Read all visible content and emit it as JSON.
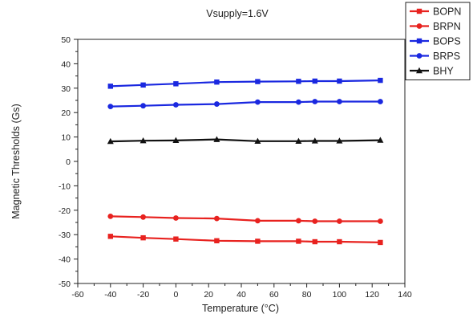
{
  "chart_data": {
    "type": "line",
    "title": "Vsupply=1.6V",
    "xlabel": "Temperature (°C)",
    "ylabel": "Magnetic Thresholds (Gs)",
    "xlim": [
      -60,
      140
    ],
    "ylim": [
      -50,
      50
    ],
    "xticks": [
      -60,
      -40,
      -20,
      0,
      20,
      40,
      60,
      80,
      100,
      120,
      140
    ],
    "yticks": [
      50,
      40,
      30,
      20,
      10,
      0,
      -10,
      -20,
      -30,
      -40,
      -50
    ],
    "grid": false,
    "legend_position": "top-right-outside",
    "x": [
      -40,
      -20,
      0,
      25,
      50,
      75,
      85,
      100,
      125
    ],
    "series": [
      {
        "name": "BOPN",
        "color": "#e8221f",
        "marker": "square",
        "values": [
          -30.7,
          -31.3,
          -31.8,
          -32.5,
          -32.7,
          -32.7,
          -32.9,
          -32.9,
          -33.2
        ]
      },
      {
        "name": "BRPN",
        "color": "#e8221f",
        "marker": "circle",
        "values": [
          -22.5,
          -22.8,
          -23.2,
          -23.4,
          -24.3,
          -24.3,
          -24.5,
          -24.5,
          -24.5
        ]
      },
      {
        "name": "BOPS",
        "color": "#1a28e0",
        "marker": "square",
        "values": [
          30.8,
          31.3,
          31.8,
          32.5,
          32.7,
          32.8,
          32.9,
          32.9,
          33.2
        ]
      },
      {
        "name": "BRPS",
        "color": "#1a28e0",
        "marker": "circle",
        "values": [
          22.5,
          22.8,
          23.2,
          23.5,
          24.3,
          24.3,
          24.5,
          24.5,
          24.5
        ]
      },
      {
        "name": "BHY",
        "color": "#111111",
        "marker": "triangle",
        "values": [
          8.2,
          8.5,
          8.6,
          9.0,
          8.3,
          8.3,
          8.4,
          8.4,
          8.7
        ]
      }
    ]
  }
}
